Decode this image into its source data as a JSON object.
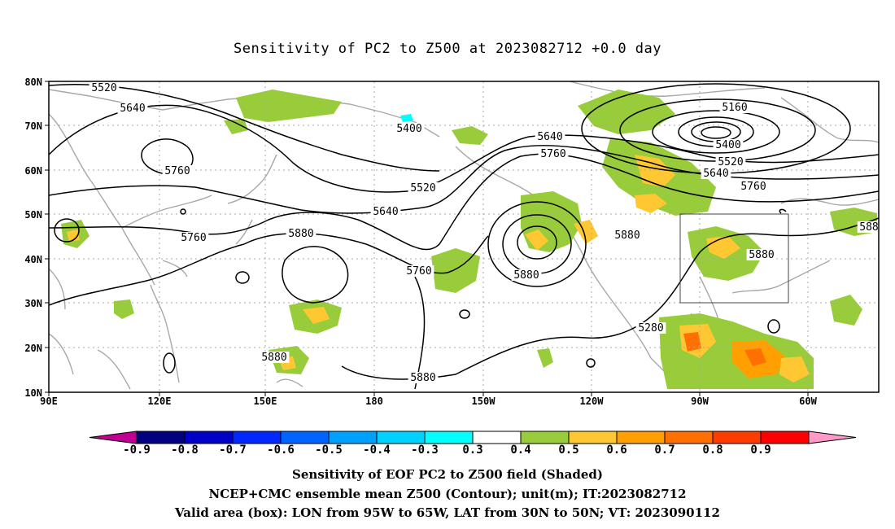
{
  "title": "Sensitivity of PC2 to Z500 at 2023082712 +0.0 day",
  "axes": {
    "lat_labels": [
      "80N",
      "70N",
      "60N",
      "50N",
      "40N",
      "30N",
      "20N",
      "10N"
    ],
    "lon_labels": [
      "90E",
      "120E",
      "150E",
      "180",
      "150W",
      "120W",
      "90W",
      "60W"
    ]
  },
  "contour_labels": [
    "5520",
    "5640",
    "5760",
    "5760",
    "5400",
    "5520",
    "5640",
    "5880",
    "5640",
    "5760",
    "5760",
    "5880",
    "5880",
    "5880",
    "5880",
    "5280",
    "5160",
    "5400",
    "5520",
    "5640",
    "5760",
    "5880",
    "588"
  ],
  "valid_box": {
    "lon_min": -95,
    "lon_max": -65,
    "lat_min": 30,
    "lat_max": 50
  },
  "colorbar": {
    "labels": [
      "-0.9",
      "-0.8",
      "-0.7",
      "-0.6",
      "-0.5",
      "-0.4",
      "-0.3",
      "0.3",
      "0.4",
      "0.5",
      "0.6",
      "0.7",
      "0.8",
      "0.9"
    ],
    "colors": {
      "low_end": "#c00090",
      "bins": [
        "#000080",
        "#0000c8",
        "#0028ff",
        "#0064ff",
        "#00a0ff",
        "#00d2ff",
        "#00ffff",
        "#ffffff",
        "#98cc3a",
        "#ffc832",
        "#ffa000",
        "#ff7000",
        "#ff3c00",
        "#ff0000"
      ],
      "high_end": "#ff99c8"
    }
  },
  "caption": {
    "line1": "Sensitivity of EOF PC2 to Z500 field (Shaded)",
    "line2": "NCEP+CMC ensemble mean Z500 (Contour); unit(m); IT:2023082712",
    "line3": "Valid area (box): LON from 95W to 65W, LAT from 30N to 50N; VT: 2023090112"
  }
}
